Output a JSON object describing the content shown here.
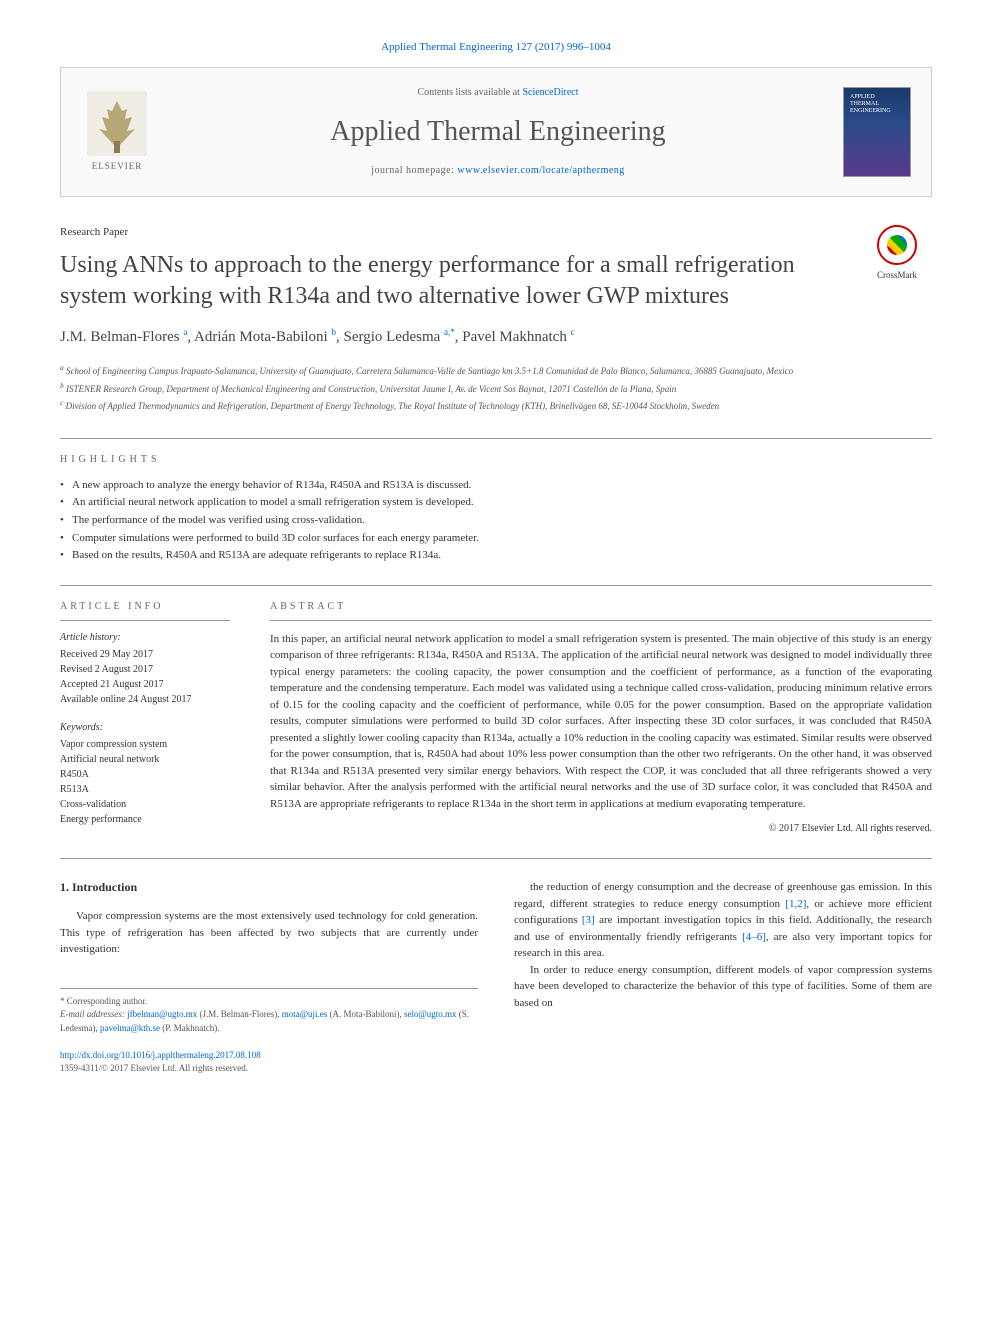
{
  "top_citation": "Applied Thermal Engineering 127 (2017) 996–1004",
  "header": {
    "contents_prefix": "Contents lists available at ",
    "contents_link": "ScienceDirect",
    "journal_title": "Applied Thermal Engineering",
    "homepage_prefix": "journal homepage: ",
    "homepage_link": "www.elsevier.com/locate/apthermeng",
    "elsevier_label": "ELSEVIER",
    "cover_text": "APPLIED THERMAL ENGINEERING"
  },
  "paper_type": "Research Paper",
  "paper_title": "Using ANNs to approach to the energy performance for a small refrigeration system working with R134a and two alternative lower GWP mixtures",
  "crossmark_label": "CrossMark",
  "authors_html": "J.M. Belman-Flores <sup>a</sup>, Adrián Mota-Babiloni <sup>b</sup>, Sergio Ledesma <sup>a,*</sup>, Pavel Makhnatch <sup>c</sup>",
  "affiliations": [
    "a School of Engineering Campus Irapuato-Salamanca, University of Guanajuato, Carretera Salamanca-Valle de Santiago km 3.5+1.8 Comunidad de Palo Blanco, Salamanca, 36885 Guanajuato, Mexico",
    "b ISTENER Research Group, Department of Mechanical Engineering and Construction, Universitat Jaume I, Av. de Vicent Sos Baynat, 12071 Castellón de la Plana, Spain",
    "c Division of Applied Thermodynamics and Refrigeration, Department of Energy Technology, The Royal Institute of Technology (KTH), Brinellvägen 68, SE-10044 Stockholm, Sweden"
  ],
  "highlights_label": "HIGHLIGHTS",
  "highlights": [
    "A new approach to analyze the energy behavior of R134a, R450A and R513A is discussed.",
    "An artificial neural network application to model a small refrigeration system is developed.",
    "The performance of the model was verified using cross-validation.",
    "Computer simulations were performed to build 3D color surfaces for each energy parameter.",
    "Based on the results, R450A and R513A are adequate refrigerants to replace R134a."
  ],
  "article_info_label": "ARTICLE INFO",
  "article_history_label": "Article history:",
  "article_history": [
    "Received 29 May 2017",
    "Revised 2 August 2017",
    "Accepted 21 August 2017",
    "Available online 24 August 2017"
  ],
  "keywords_label": "Keywords:",
  "keywords": [
    "Vapor compression system",
    "Artificial neural network",
    "R450A",
    "R513A",
    "Cross-validation",
    "Energy performance"
  ],
  "abstract_label": "ABSTRACT",
  "abstract_text": "In this paper, an artificial neural network application to model a small refrigeration system is presented. The main objective of this study is an energy comparison of three refrigerants: R134a, R450A and R513A. The application of the artificial neural network was designed to model individually three typical energy parameters: the cooling capacity, the power consumption and the coefficient of performance, as a function of the evaporating temperature and the condensing temperature. Each model was validated using a technique called cross-validation, producing minimum relative errors of 0.15 for the cooling capacity and the coefficient of performance, while 0.05 for the power consumption. Based on the appropriate validation results, computer simulations were performed to build 3D color surfaces. After inspecting these 3D color surfaces, it was concluded that R450A presented a slightly lower cooling capacity than R134a, actually a 10% reduction in the cooling capacity was estimated. Similar results were observed for the power consumption, that is, R450A had about 10% less power consumption than the other two refrigerants. On the other hand, it was observed that R134a and R513A presented very similar energy behaviors. With respect the COP, it was concluded that all three refrigerants showed a very similar behavior. After the analysis performed with the artificial neural networks and the use of 3D surface color, it was concluded that R450A and R513A are appropriate refrigerants to replace R134a in the short term in applications at medium evaporating temperature.",
  "copyright": "© 2017 Elsevier Ltd. All rights reserved.",
  "intro_heading": "1. Introduction",
  "intro_col1_p1": "Vapor compression systems are the most extensively used technology for cold generation. This type of refrigeration has been affected by two subjects that are currently under investigation:",
  "intro_col2_p1": "the reduction of energy consumption and the decrease of greenhouse gas emission. In this regard, different strategies to reduce energy consumption [1,2], or achieve more efficient configurations [3] are important investigation topics in this field. Additionally, the research and use of environmentally friendly refrigerants [4–6], are also very important topics for research in this area.",
  "intro_col2_p2": "In order to reduce energy consumption, different models of vapor compression systems have been developed to characterize the behavior of this type of facilities. Some of them are based on",
  "footnotes": {
    "corresponding": "* Corresponding author.",
    "emails_label": "E-mail addresses: ",
    "emails": [
      {
        "addr": "jfbelman@ugto.mx",
        "who": "(J.M. Belman-Flores)"
      },
      {
        "addr": "mota@uji.es",
        "who": "(A. Mota-Babiloni)"
      },
      {
        "addr": "selo@ugto.mx",
        "who": "(S. Ledesma)"
      },
      {
        "addr": "pavelma@kth.se",
        "who": "(P. Makhnatch)"
      }
    ]
  },
  "doi_line": "http://dx.doi.org/10.1016/j.applthermaleng.2017.08.108",
  "issn_line": "1359-4311/© 2017 Elsevier Ltd. All rights reserved.",
  "colors": {
    "link": "#0066cc",
    "text": "#333333",
    "muted": "#666666",
    "border": "#999999"
  }
}
